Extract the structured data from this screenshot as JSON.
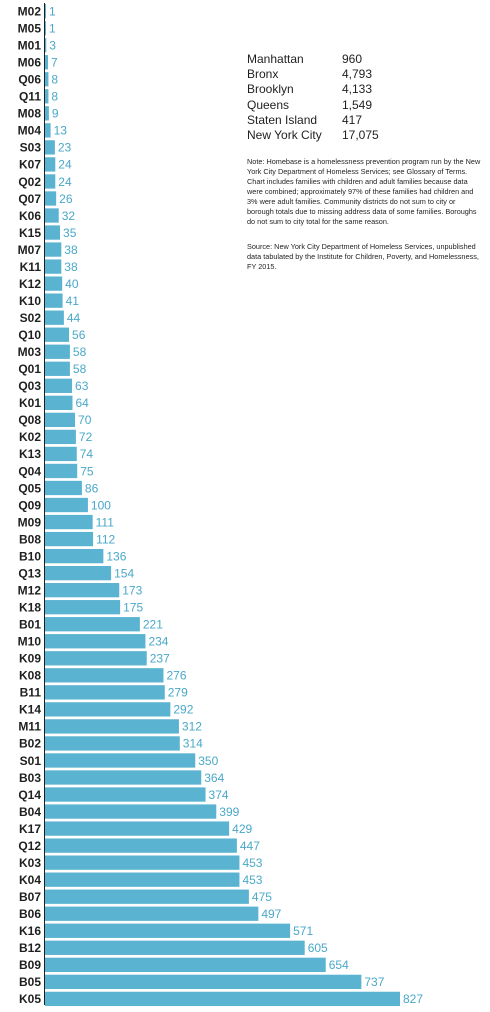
{
  "chart_data": {
    "type": "bar",
    "orientation": "horizontal",
    "categories": [
      "M02",
      "M05",
      "M01",
      "M06",
      "Q06",
      "Q11",
      "M08",
      "M04",
      "S03",
      "K07",
      "Q02",
      "Q07",
      "K06",
      "K15",
      "M07",
      "K11",
      "K12",
      "K10",
      "S02",
      "Q10",
      "M03",
      "Q01",
      "Q03",
      "K01",
      "Q08",
      "K02",
      "K13",
      "Q04",
      "Q05",
      "Q09",
      "M09",
      "B08",
      "B10",
      "Q13",
      "M12",
      "K18",
      "B01",
      "M10",
      "K09",
      "K08",
      "B11",
      "K14",
      "M11",
      "B02",
      "S01",
      "B03",
      "Q14",
      "B04",
      "K17",
      "Q12",
      "K03",
      "K04",
      "B07",
      "B06",
      "K16",
      "B12",
      "B09",
      "B05",
      "K05"
    ],
    "values": [
      1,
      1,
      3,
      7,
      8,
      8,
      9,
      13,
      23,
      24,
      24,
      26,
      32,
      35,
      38,
      38,
      40,
      41,
      44,
      56,
      58,
      58,
      63,
      64,
      70,
      72,
      74,
      75,
      86,
      100,
      111,
      112,
      136,
      154,
      173,
      175,
      221,
      234,
      237,
      276,
      279,
      292,
      312,
      314,
      350,
      364,
      374,
      399,
      429,
      447,
      453,
      453,
      475,
      497,
      571,
      605,
      654,
      737,
      827
    ],
    "value_labels": [
      "1",
      "1",
      "3",
      "7",
      "8",
      "8",
      "9",
      "13",
      "23",
      "24",
      "24",
      "26",
      "32",
      "35",
      "38",
      "38",
      "40",
      "41",
      "44",
      "56",
      "58",
      "58",
      "63",
      "64",
      "70",
      "72",
      "74",
      "75",
      "86",
      "100",
      "111",
      "112",
      "136",
      "154",
      "173",
      "175",
      "221",
      "234",
      "237",
      "276",
      "279",
      "292",
      "312",
      "314",
      "350",
      "364",
      "374",
      "399",
      "429",
      "447",
      "453",
      "453",
      "475",
      "497",
      "571",
      "605",
      "654",
      "737",
      "827"
    ],
    "xlim": [
      0,
      827
    ],
    "grid": false,
    "bar_color": "#5ab3d0",
    "value_label_color": "#4aa8c9"
  },
  "totals": [
    {
      "name": "Manhattan",
      "value": "960"
    },
    {
      "name": "Bronx",
      "value": "4,793"
    },
    {
      "name": "Brooklyn",
      "value": "4,133"
    },
    {
      "name": "Queens",
      "value": "1,549"
    },
    {
      "name": "Staten Island",
      "value": "417"
    },
    {
      "name": "New York City",
      "value": "17,075"
    }
  ],
  "note": "Note: Homebase is a homelessness prevention program run by the New York City Department of Homeless Services; see Glossary of Terms. Chart includes families with children and adult families because data were combined; approximately 97% of these families had children and 3% were adult families. Community districts do not sum to city or borough totals due to missing address data of some families. Boroughs do not sum to city total for the same reason.",
  "source": "Source: New York City Department of Homeless Services, unpublished data tabulated by the Institute for Children, Poverty, and Homelessness, FY 2015."
}
